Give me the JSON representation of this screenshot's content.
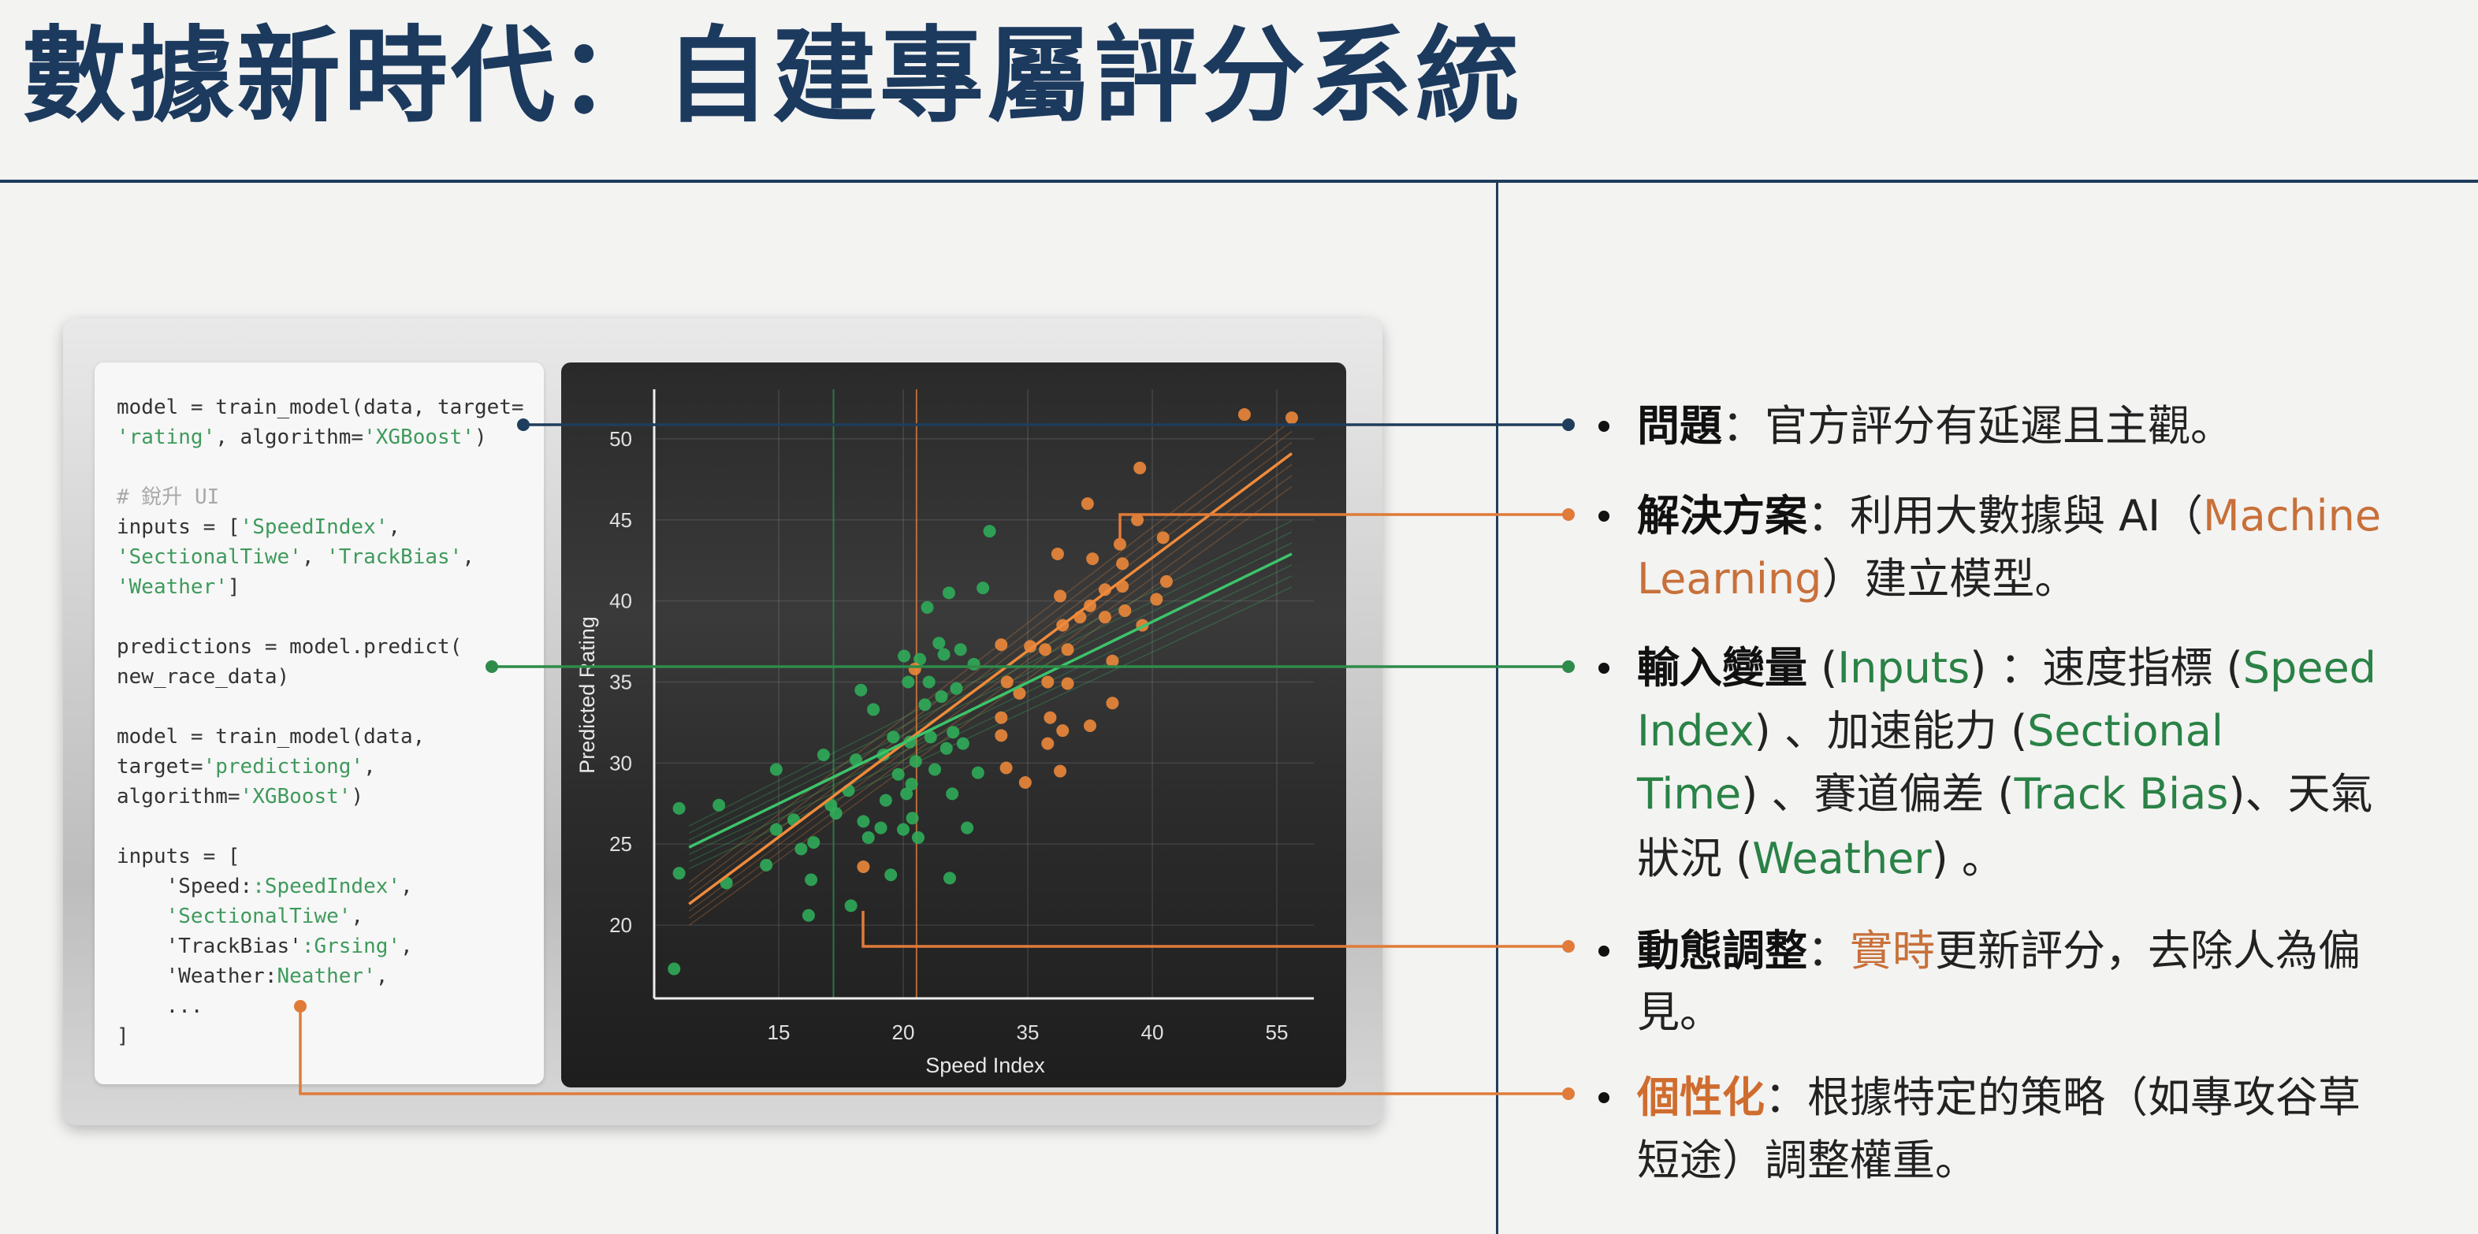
{
  "title": "數據新時代：自建專屬評分系統",
  "colors": {
    "navy": "#1f3d5c",
    "orange": "#e07b39",
    "green": "#2e8b4a",
    "text_orange": "#c8703a",
    "text_green": "#2a8246"
  },
  "code_lines": [
    [
      {
        "t": "model = train_model(data, target=",
        "c": "plain"
      }
    ],
    [
      {
        "t": "'rating'",
        "c": "str"
      },
      {
        "t": ", algorithm=",
        "c": "plain"
      },
      {
        "t": "'XGBoost'",
        "c": "str"
      },
      {
        "t": ")",
        "c": "plain"
      }
    ],
    [],
    [
      {
        "t": "# 銳升 UI",
        "c": "comment"
      }
    ],
    [
      {
        "t": "inputs = [",
        "c": "plain"
      },
      {
        "t": "'SpeedIndex'",
        "c": "str"
      },
      {
        "t": ",",
        "c": "plain"
      }
    ],
    [
      {
        "t": "'SectionalTiwe'",
        "c": "str"
      },
      {
        "t": ", ",
        "c": "plain"
      },
      {
        "t": "'TrackBias'",
        "c": "str"
      },
      {
        "t": ",",
        "c": "plain"
      }
    ],
    [
      {
        "t": "'Weather'",
        "c": "str"
      },
      {
        "t": "]",
        "c": "plain"
      }
    ],
    [],
    [
      {
        "t": "predictions = model.predict(",
        "c": "plain"
      }
    ],
    [
      {
        "t": "new_race_data)",
        "c": "plain"
      }
    ],
    [],
    [
      {
        "t": "model = train_model(data,",
        "c": "plain"
      }
    ],
    [
      {
        "t": "target=",
        "c": "plain"
      },
      {
        "t": "'predictiong'",
        "c": "str"
      },
      {
        "t": ",",
        "c": "plain"
      }
    ],
    [
      {
        "t": "algorithm=",
        "c": "plain"
      },
      {
        "t": "'XGBoost'",
        "c": "str"
      },
      {
        "t": ")",
        "c": "plain"
      }
    ],
    [],
    [
      {
        "t": "inputs = [",
        "c": "plain"
      }
    ],
    [
      {
        "t": "    'Speed:",
        "c": "plain"
      },
      {
        "t": ":SpeedIndex'",
        "c": "str"
      },
      {
        "t": ",",
        "c": "plain"
      }
    ],
    [
      {
        "t": "    'SectionalTiwe'",
        "c": "str"
      },
      {
        "t": ",",
        "c": "plain"
      }
    ],
    [
      {
        "t": "    'TrackBias'",
        "c": "plain"
      },
      {
        "t": ":Grsing'",
        "c": "str"
      },
      {
        "t": ",",
        "c": "plain"
      }
    ],
    [
      {
        "t": "    'Weather:",
        "c": "plain"
      },
      {
        "t": "Neather'",
        "c": "str"
      },
      {
        "t": ",",
        "c": "plain"
      }
    ],
    [
      {
        "t": "    ...",
        "c": "plain"
      }
    ],
    [
      {
        "t": "]",
        "c": "plain"
      }
    ]
  ],
  "bullets": [
    {
      "connector": "navy",
      "lines": [
        [
          {
            "t": "問題",
            "c": "bold"
          },
          {
            "t": "：官方評分有延遲且主觀。",
            "c": "plain"
          }
        ]
      ]
    },
    {
      "connector": "orange",
      "lines": [
        [
          {
            "t": "解決方案",
            "c": "bold"
          },
          {
            "t": "：利用大數據與 AI（",
            "c": "plain"
          },
          {
            "t": "Machine",
            "c": "orange"
          }
        ],
        [
          {
            "t": "Learning",
            "c": "orange"
          },
          {
            "t": "）建立模型。",
            "c": "plain"
          }
        ]
      ]
    },
    {
      "connector": "green",
      "lines": [
        [
          {
            "t": "輸入變量",
            "c": "bold"
          },
          {
            "t": " (",
            "c": "plain"
          },
          {
            "t": "Inputs",
            "c": "green"
          },
          {
            "t": ") ：速度指標 (",
            "c": "plain"
          },
          {
            "t": "Speed",
            "c": "green"
          }
        ],
        [
          {
            "t": "Index",
            "c": "green"
          },
          {
            "t": ") 、加速能力 (",
            "c": "plain"
          },
          {
            "t": "Sectional",
            "c": "green"
          }
        ],
        [
          {
            "t": "Time",
            "c": "green"
          },
          {
            "t": ") 、賽道偏差 (",
            "c": "plain"
          },
          {
            "t": "Track Bias",
            "c": "green"
          },
          {
            "t": ")、天氣",
            "c": "plain"
          }
        ],
        [
          {
            "t": "狀況 (",
            "c": "plain"
          },
          {
            "t": "Weather",
            "c": "green"
          },
          {
            "t": ") 。",
            "c": "plain"
          }
        ]
      ]
    },
    {
      "connector": "orange",
      "lines": [
        [
          {
            "t": "動態調整",
            "c": "bold"
          },
          {
            "t": "：",
            "c": "plain"
          },
          {
            "t": "實時",
            "c": "orange"
          },
          {
            "t": "更新評分，去除人為偏",
            "c": "plain"
          }
        ],
        [
          {
            "t": "見。",
            "c": "plain"
          }
        ]
      ]
    },
    {
      "connector": "orange",
      "lines": [
        [
          {
            "t": "個性化",
            "c": "orange-bold"
          },
          {
            "t": "：根據特定的策略（如專攻谷草",
            "c": "plain"
          }
        ],
        [
          {
            "t": "短途）調整權重。",
            "c": "plain"
          }
        ]
      ]
    }
  ],
  "chart_data": {
    "type": "scatter",
    "xlabel": "Speed Index",
    "ylabel": "Predicted Rating",
    "x_tick_labels": [
      "15",
      "20",
      "35",
      "40",
      "55"
    ],
    "y_ticks": [
      20,
      25,
      30,
      35,
      40,
      45,
      50
    ],
    "y_tick_labels": [
      "20",
      "25",
      "30",
      "35",
      "40",
      "45",
      "50"
    ],
    "xlim": [
      10,
      59.5
    ],
    "ylim": [
      15.5,
      52.5
    ],
    "grid": true,
    "series": [
      {
        "color": "#2fae5a",
        "points": [
          [
            10.8,
            17.3
          ],
          [
            11,
            23.2
          ],
          [
            11,
            27.2
          ],
          [
            12.6,
            27.4
          ],
          [
            12.9,
            22.6
          ],
          [
            14.5,
            23.7
          ],
          [
            14.9,
            29.6
          ],
          [
            14.9,
            25.9
          ],
          [
            15.6,
            26.5
          ],
          [
            15.9,
            24.7
          ],
          [
            16.2,
            20.6
          ],
          [
            16.3,
            22.8
          ],
          [
            16.8,
            30.5
          ],
          [
            16.4,
            25.1
          ],
          [
            17.1,
            27.4
          ],
          [
            17.3,
            26.9
          ],
          [
            17.8,
            28.3
          ],
          [
            17.9,
            21.2
          ],
          [
            18.1,
            30.2
          ],
          [
            18.3,
            34.5
          ],
          [
            18.4,
            26.4
          ],
          [
            18.6,
            25.4
          ],
          [
            18.8,
            33.3
          ],
          [
            19.2,
            30.5
          ],
          [
            19.3,
            27.7
          ],
          [
            19.5,
            23.1
          ],
          [
            19.6,
            31.6
          ],
          [
            19.8,
            29.3
          ],
          [
            20,
            25.9
          ],
          [
            20.1,
            36.6
          ],
          [
            20.4,
            28.1
          ],
          [
            20.6,
            35.0
          ],
          [
            20.8,
            31.3
          ],
          [
            21.1,
            26.6
          ],
          [
            21.5,
            30.1
          ],
          [
            21.8,
            25.4
          ],
          [
            22.0,
            36.4
          ],
          [
            22.6,
            33.6
          ],
          [
            22.9,
            39.6
          ],
          [
            23.1,
            35.0
          ],
          [
            23.3,
            31.6
          ],
          [
            24.3,
            37.4
          ],
          [
            24.6,
            34.1
          ],
          [
            24.9,
            36.7
          ],
          [
            25.2,
            30.9
          ],
          [
            25.6,
            22.9
          ],
          [
            25.5,
            40.5
          ],
          [
            25.9,
            28.1
          ],
          [
            26.4,
            34.6
          ],
          [
            26.9,
            37.0
          ],
          [
            27.2,
            31.2
          ],
          [
            27.7,
            26.0
          ],
          [
            28.5,
            36.1
          ],
          [
            29.0,
            29.4
          ],
          [
            29.6,
            40.8
          ],
          [
            30.4,
            44.3
          ],
          [
            19.1,
            26.0
          ],
          [
            21.0,
            28.7
          ],
          [
            23.8,
            29.6
          ],
          [
            26.0,
            31.9
          ]
        ]
      },
      {
        "color": "#f08a3a",
        "points": [
          [
            51.1,
            51.5
          ],
          [
            56.8,
            51.3
          ],
          [
            39.5,
            48.2
          ],
          [
            37.4,
            46.0
          ],
          [
            39.4,
            45.0
          ],
          [
            41.3,
            43.9
          ],
          [
            36.2,
            42.9
          ],
          [
            37.6,
            42.6
          ],
          [
            38.7,
            43.5
          ],
          [
            38.8,
            42.3
          ],
          [
            38.8,
            40.9
          ],
          [
            38.1,
            40.7
          ],
          [
            36.3,
            40.3
          ],
          [
            41.7,
            41.2
          ],
          [
            40.5,
            40.1
          ],
          [
            37.5,
            39.7
          ],
          [
            37.1,
            39.0
          ],
          [
            36.4,
            38.5
          ],
          [
            38.1,
            39.0
          ],
          [
            38.9,
            39.4
          ],
          [
            39.6,
            38.5
          ],
          [
            35.1,
            37.2
          ],
          [
            35.7,
            37.0
          ],
          [
            36.6,
            37.0
          ],
          [
            31.8,
            37.3
          ],
          [
            38.4,
            36.3
          ],
          [
            32.5,
            35.0
          ],
          [
            35.8,
            35.0
          ],
          [
            36.6,
            34.9
          ],
          [
            34.0,
            34.3
          ],
          [
            38.4,
            33.7
          ],
          [
            35.9,
            32.8
          ],
          [
            36.4,
            32.0
          ],
          [
            31.8,
            32.8
          ],
          [
            31.8,
            31.7
          ],
          [
            37.5,
            32.3
          ],
          [
            35.8,
            31.2
          ],
          [
            32.4,
            29.7
          ],
          [
            36.3,
            29.5
          ],
          [
            34.7,
            28.8
          ],
          [
            18.4,
            23.6
          ],
          [
            21.4,
            35.8
          ]
        ]
      }
    ],
    "trend_lines": [
      {
        "color": "#f08a3a",
        "from": [
          11.4,
          21.3
        ],
        "to": [
          56.8,
          49.1
        ]
      },
      {
        "color": "#3cc46a",
        "from": [
          11.4,
          24.8
        ],
        "to": [
          56.8,
          42.9
        ]
      }
    ],
    "reference_lines_x": [
      {
        "color": "#2e8b4a",
        "x": 17.2
      },
      {
        "color": "#e07b39",
        "x": 21.6
      }
    ]
  }
}
